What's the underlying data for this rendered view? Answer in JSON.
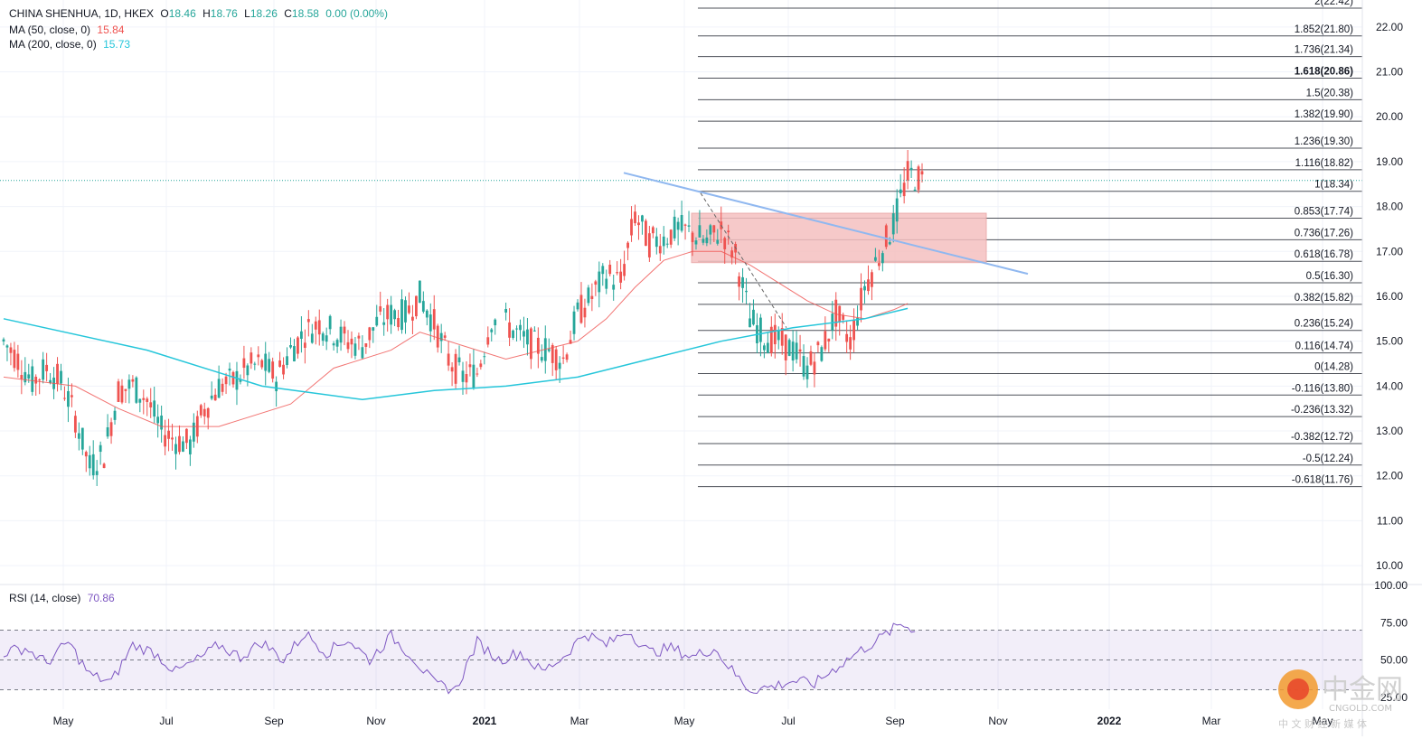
{
  "header": {
    "symbol": "CHINA SHENHUA, 1D, HKEX",
    "ohlc": {
      "o_label": "O",
      "o": "18.46",
      "h_label": "H",
      "h": "18.76",
      "l_label": "L",
      "l": "18.26",
      "c_label": "C",
      "c": "18.58",
      "change": "0.00 (0.00%)"
    },
    "ma50": {
      "label": "MA (50, close, 0)",
      "value": "15.84"
    },
    "ma200": {
      "label": "MA (200, close, 0)",
      "value": "15.73"
    },
    "rsi": {
      "label": "RSI (14, close)",
      "value": "70.86"
    }
  },
  "colors": {
    "up": "#26a69a",
    "down": "#ef5350",
    "ma50": "#ef5350",
    "ma200": "#26c6da",
    "rsi": "#7e57c2",
    "fib": "#131722",
    "trendline": "#90b8f0",
    "zone": "#f5c0c0"
  },
  "watermark": {
    "brand": "中金网",
    "domain": "CNGOLD.COM",
    "tagline": "中 文 财 经 新 媒 体"
  },
  "chart_data": {
    "type": "candlestick",
    "x_axis": {
      "ticks": [
        "May",
        "Jul",
        "Sep",
        "Nov",
        "2021",
        "Mar",
        "May",
        "Jul",
        "Sep",
        "Nov",
        "2022",
        "Mar",
        "May"
      ]
    },
    "y_axis": {
      "ticks": [
        "22.00",
        "21.00",
        "20.00",
        "19.00",
        "18.00",
        "17.00",
        "16.00",
        "15.00",
        "14.00",
        "13.00",
        "12.00",
        "11.00",
        "10.00"
      ],
      "range": [
        9.6,
        22.6
      ]
    },
    "last_price": 18.58,
    "price_path": [
      [
        0,
        15.0
      ],
      [
        2,
        14.6
      ],
      [
        4,
        14.1
      ],
      [
        6,
        14.4
      ],
      [
        8,
        14.1
      ],
      [
        10,
        13.3
      ],
      [
        12,
        12.2
      ],
      [
        14,
        12.5
      ],
      [
        16,
        13.9
      ],
      [
        18,
        14.0
      ],
      [
        20,
        13.7
      ],
      [
        22,
        13.0
      ],
      [
        24,
        12.8
      ],
      [
        26,
        12.7
      ],
      [
        28,
        13.5
      ],
      [
        30,
        14.0
      ],
      [
        32,
        14.1
      ],
      [
        34,
        14.4
      ],
      [
        36,
        14.5
      ],
      [
        38,
        14.2
      ],
      [
        40,
        14.8
      ],
      [
        42,
        15.2
      ],
      [
        44,
        15.4
      ],
      [
        46,
        15.2
      ],
      [
        48,
        15.0
      ],
      [
        50,
        14.9
      ],
      [
        52,
        15.4
      ],
      [
        54,
        15.6
      ],
      [
        56,
        15.6
      ],
      [
        58,
        16.0
      ],
      [
        60,
        15.4
      ],
      [
        62,
        14.6
      ],
      [
        64,
        14.2
      ],
      [
        66,
        14.3
      ],
      [
        68,
        15.5
      ],
      [
        70,
        15.4
      ],
      [
        72,
        15.1
      ],
      [
        74,
        14.9
      ],
      [
        76,
        14.8
      ],
      [
        78,
        14.6
      ],
      [
        80,
        15.6
      ],
      [
        82,
        16.0
      ],
      [
        84,
        16.5
      ],
      [
        86,
        16.3
      ],
      [
        88,
        17.8
      ],
      [
        90,
        17.2
      ],
      [
        92,
        17.3
      ],
      [
        94,
        17.5
      ],
      [
        96,
        17.4
      ],
      [
        98,
        17.2
      ],
      [
        100,
        17.5
      ],
      [
        102,
        16.9
      ],
      [
        104,
        15.5
      ],
      [
        106,
        15.1
      ],
      [
        108,
        15.0
      ],
      [
        110,
        14.8
      ],
      [
        112,
        14.4
      ],
      [
        114,
        14.8
      ],
      [
        116,
        15.6
      ],
      [
        118,
        15.0
      ],
      [
        120,
        16.2
      ],
      [
        122,
        16.9
      ],
      [
        124,
        17.6
      ],
      [
        126,
        18.7
      ],
      [
        128,
        18.6
      ]
    ],
    "ma50_path": [
      [
        0,
        14.2
      ],
      [
        10,
        14.0
      ],
      [
        16,
        13.5
      ],
      [
        22,
        13.1
      ],
      [
        30,
        13.1
      ],
      [
        40,
        13.6
      ],
      [
        46,
        14.4
      ],
      [
        54,
        14.8
      ],
      [
        58,
        15.2
      ],
      [
        64,
        14.9
      ],
      [
        70,
        14.6
      ],
      [
        80,
        15.0
      ],
      [
        84,
        15.5
      ],
      [
        88,
        16.2
      ],
      [
        92,
        16.8
      ],
      [
        96,
        17.0
      ],
      [
        100,
        17.0
      ],
      [
        104,
        16.7
      ],
      [
        112,
        15.9
      ],
      [
        116,
        15.6
      ],
      [
        120,
        15.5
      ],
      [
        124,
        15.7
      ],
      [
        126,
        15.84
      ]
    ],
    "ma200_path": [
      [
        0,
        15.5
      ],
      [
        20,
        14.8
      ],
      [
        36,
        14.0
      ],
      [
        50,
        13.7
      ],
      [
        60,
        13.9
      ],
      [
        70,
        14.0
      ],
      [
        80,
        14.2
      ],
      [
        90,
        14.6
      ],
      [
        100,
        15.0
      ],
      [
        110,
        15.3
      ],
      [
        120,
        15.5
      ],
      [
        126,
        15.73
      ]
    ],
    "rsi": {
      "ticks": [
        "100.00",
        "75.00",
        "50.00",
        "25.00"
      ],
      "range": [
        17,
        100
      ],
      "overbought": 70,
      "oversold": 30,
      "mid": 50,
      "path": [
        [
          0,
          55
        ],
        [
          3,
          58
        ],
        [
          6,
          48
        ],
        [
          9,
          62
        ],
        [
          12,
          40
        ],
        [
          15,
          35
        ],
        [
          18,
          60
        ],
        [
          21,
          55
        ],
        [
          24,
          42
        ],
        [
          27,
          50
        ],
        [
          30,
          60
        ],
        [
          33,
          52
        ],
        [
          36,
          62
        ],
        [
          39,
          50
        ],
        [
          42,
          68
        ],
        [
          45,
          55
        ],
        [
          48,
          64
        ],
        [
          51,
          50
        ],
        [
          54,
          66
        ],
        [
          57,
          52
        ],
        [
          60,
          34
        ],
        [
          63,
          30
        ],
        [
          66,
          62
        ],
        [
          69,
          50
        ],
        [
          72,
          55
        ],
        [
          75,
          42
        ],
        [
          78,
          52
        ],
        [
          81,
          68
        ],
        [
          84,
          60
        ],
        [
          87,
          70
        ],
        [
          90,
          55
        ],
        [
          93,
          58
        ],
        [
          96,
          52
        ],
        [
          99,
          58
        ],
        [
          102,
          40
        ],
        [
          104,
          30
        ],
        [
          107,
          32
        ],
        [
          110,
          36
        ],
        [
          113,
          34
        ],
        [
          116,
          45
        ],
        [
          119,
          55
        ],
        [
          122,
          64
        ],
        [
          125,
          74
        ],
        [
          127,
          70.86
        ]
      ]
    },
    "fibonacci": [
      {
        "price": 22.42,
        "label": "2(22.42)"
      },
      {
        "price": 21.8,
        "label": "1.852(21.80)"
      },
      {
        "price": 21.34,
        "label": "1.736(21.34)"
      },
      {
        "price": 20.86,
        "label": "1.618(20.86)"
      },
      {
        "price": 20.38,
        "label": "1.5(20.38)"
      },
      {
        "price": 19.9,
        "label": "1.382(19.90)"
      },
      {
        "price": 19.3,
        "label": "1.236(19.30)"
      },
      {
        "price": 18.82,
        "label": "1.116(18.82)"
      },
      {
        "price": 18.34,
        "label": "1(18.34)"
      },
      {
        "price": 17.74,
        "label": "0.853(17.74)"
      },
      {
        "price": 17.26,
        "label": "0.736(17.26)"
      },
      {
        "price": 16.78,
        "label": "0.618(16.78)"
      },
      {
        "price": 16.3,
        "label": "0.5(16.30)"
      },
      {
        "price": 15.82,
        "label": "0.382(15.82)"
      },
      {
        "price": 15.24,
        "label": "0.236(15.24)"
      },
      {
        "price": 14.74,
        "label": "0.116(14.74)"
      },
      {
        "price": 14.28,
        "label": "0(14.28)"
      },
      {
        "price": 13.8,
        "label": "-0.116(13.80)"
      },
      {
        "price": 13.32,
        "label": "-0.236(13.32)"
      },
      {
        "price": 12.72,
        "label": "-0.382(12.72)"
      },
      {
        "price": 12.24,
        "label": "-0.5(12.24)"
      },
      {
        "price": 11.76,
        "label": "-0.618(11.76)"
      }
    ],
    "zone": {
      "top": 17.85,
      "bottom": 16.75
    },
    "trendline": [
      [
        18.75,
        0
      ],
      [
        16.5,
        1
      ]
    ],
    "dashed_leg": [
      [
        18.3,
        0
      ],
      [
        14.5,
        1
      ]
    ]
  }
}
